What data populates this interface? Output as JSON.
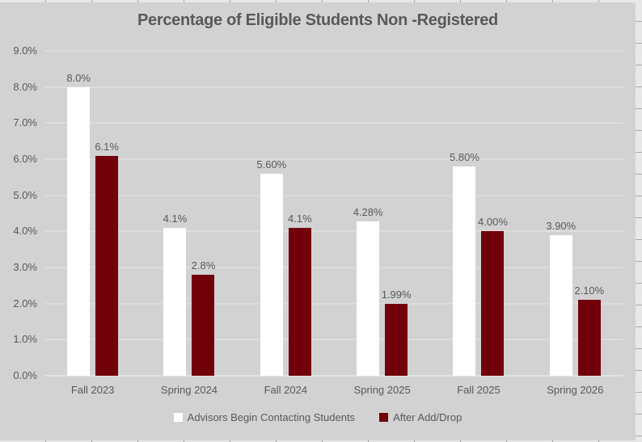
{
  "chart_data": {
    "type": "bar",
    "title": "Percentage of Eligible Students Non -Registered",
    "categories": [
      "Fall 2023",
      "Spring 2024",
      "Fall 2024",
      "Spring 2025",
      "Fall 2025",
      "Spring 2026"
    ],
    "series": [
      {
        "name": "Advisors Begin Contacting Students",
        "color": "#ffffff",
        "values": [
          8.0,
          4.1,
          5.6,
          4.28,
          5.8,
          3.9
        ],
        "labels": [
          "8.0%",
          "4.1%",
          "5.60%",
          "4.28%",
          "5.80%",
          "3.90%"
        ]
      },
      {
        "name": "After Add/Drop",
        "color": "#72000A",
        "values": [
          6.1,
          2.8,
          4.1,
          1.99,
          4.0,
          2.1
        ],
        "labels": [
          "6.1%",
          "2.8%",
          "4.1%",
          "1.99%",
          "4.00%",
          "2.10%"
        ]
      }
    ],
    "y_axis": {
      "min": 0,
      "max": 9,
      "step": 1,
      "tick_labels": [
        "0.0%",
        "1.0%",
        "2.0%",
        "3.0%",
        "4.0%",
        "5.0%",
        "6.0%",
        "7.0%",
        "8.0%",
        "9.0%"
      ]
    },
    "grid": true,
    "legend_position": "bottom",
    "colors": {
      "chart_background": "#d2d2d2",
      "text": "#595959",
      "gridline": "#dcdcdc",
      "accent_dark_red": "#72000A",
      "bar_white": "#ffffff"
    }
  }
}
